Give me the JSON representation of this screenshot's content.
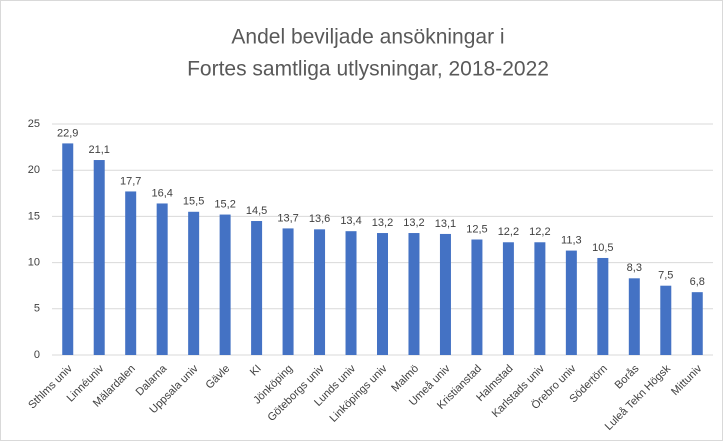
{
  "chart_data": {
    "type": "bar",
    "title": [
      "Andel beviljade ansökningar i",
      "Fortes samtliga utlysningar, 2018-2022"
    ],
    "categories": [
      "Sthlms univ",
      "Linnéuniv",
      "Mälardalen",
      "Dalarna",
      "Uppsala univ",
      "Gävle",
      "KI",
      "Jönköping",
      "Göteborgs univ",
      "Lunds univ",
      "Linköpings univ",
      "Malmö",
      "Umeå univ",
      "Kristianstad",
      "Halmstad",
      "Karlstads univ",
      "Örebro univ",
      "Södertörn",
      "Borås",
      "Luleå Tekn Högsk",
      "Mittuniv"
    ],
    "values": [
      22.9,
      21.1,
      17.7,
      16.4,
      15.5,
      15.2,
      14.5,
      13.7,
      13.6,
      13.4,
      13.2,
      13.2,
      13.1,
      12.5,
      12.2,
      12.2,
      11.3,
      10.5,
      8.3,
      7.5,
      6.8
    ],
    "value_labels": [
      "22,9",
      "21,1",
      "17,7",
      "16,4",
      "15,5",
      "15,2",
      "14,5",
      "13,7",
      "13,6",
      "13,4",
      "13,2",
      "13,2",
      "13,1",
      "12,5",
      "12,2",
      "12,2",
      "11,3",
      "10,5",
      "8,3",
      "7,5",
      "6,8"
    ],
    "color": "#4472c4",
    "ylim": [
      0,
      25
    ],
    "yticks": [
      0,
      5,
      10,
      15,
      20,
      25
    ],
    "grid": true
  }
}
